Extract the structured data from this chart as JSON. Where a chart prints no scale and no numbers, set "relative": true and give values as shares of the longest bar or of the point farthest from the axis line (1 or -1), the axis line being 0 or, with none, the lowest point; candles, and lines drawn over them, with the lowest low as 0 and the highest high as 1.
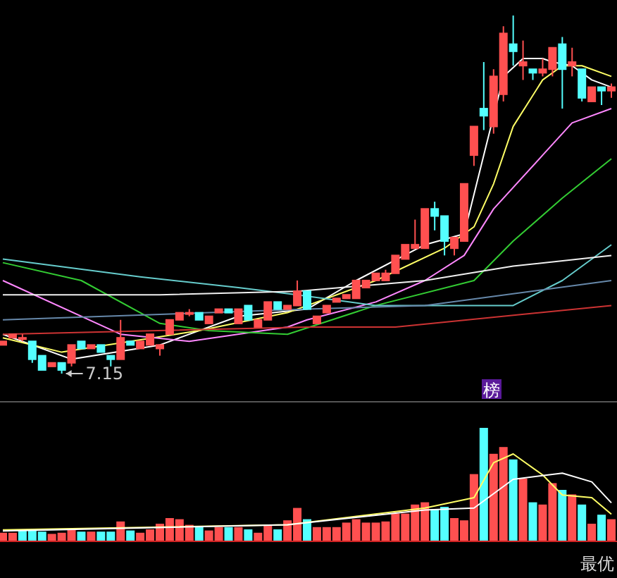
{
  "chart_data": [
    {
      "type": "candlestick",
      "relative": true,
      "categories": [
        null,
        null,
        null,
        null,
        null,
        null,
        null,
        null,
        null,
        null,
        null,
        null,
        null,
        null,
        null,
        null,
        null,
        null,
        null,
        null,
        null,
        null,
        null,
        null,
        null,
        null,
        null,
        null,
        null,
        null,
        null,
        null,
        null,
        null,
        null,
        null,
        null,
        null,
        null,
        null,
        null,
        null,
        null,
        null,
        null,
        null,
        null,
        null,
        null,
        null,
        null,
        null,
        null,
        null,
        null,
        null,
        null,
        null,
        null,
        null,
        null,
        null,
        null
      ],
      "ohlc": [
        [
          0.08,
          0.09,
          0.08,
          0.09
        ],
        [
          0.1,
          0.11,
          0.1,
          0.11
        ],
        [
          0.1,
          0.11,
          0.09,
          0.1
        ],
        [
          0.09,
          0.09,
          0.03,
          0.04
        ],
        [
          0.05,
          0.05,
          0.01,
          0.01
        ],
        [
          0.02,
          0.03,
          0.02,
          0.03
        ],
        [
          0.03,
          0.03,
          0,
          0.01
        ],
        [
          0.03,
          0.08,
          0.02,
          0.08
        ],
        [
          0.09,
          0.09,
          0.07,
          0.07
        ],
        [
          0.07,
          0.08,
          0.07,
          0.08
        ],
        [
          0.08,
          0.08,
          0.06,
          0.06
        ],
        [
          0.05,
          0.05,
          0.02,
          0.04
        ],
        [
          0.04,
          0.15,
          0.04,
          0.1
        ],
        [
          0.09,
          0.09,
          0.08,
          0.08
        ],
        [
          0.07,
          0.09,
          0.07,
          0.09
        ],
        [
          0.08,
          0.11,
          0.08,
          0.11
        ],
        [
          0.07,
          0.08,
          0.05,
          0.08
        ],
        [
          0.11,
          0.15,
          0.11,
          0.15
        ],
        [
          0.15,
          0.17,
          0.15,
          0.17
        ],
        [
          0.17,
          0.18,
          0.16,
          0.17
        ],
        [
          0.17,
          0.17,
          0.15,
          0.15
        ],
        [
          0.14,
          0.16,
          0.14,
          0.16
        ],
        [
          0.17,
          0.18,
          0.17,
          0.18
        ],
        [
          0.18,
          0.18,
          0.17,
          0.17
        ],
        [
          0.14,
          0.18,
          0.14,
          0.18
        ],
        [
          0.19,
          0.19,
          0.15,
          0.15
        ],
        [
          0.13,
          0.15,
          0.13,
          0.15
        ],
        [
          0.15,
          0.2,
          0.15,
          0.2
        ],
        [
          0.2,
          0.2,
          0.18,
          0.18
        ],
        [
          0.18,
          0.19,
          0.18,
          0.19
        ],
        [
          0.19,
          0.26,
          0.19,
          0.23
        ],
        [
          0.23,
          0.23,
          0.18,
          0.18
        ],
        [
          0.14,
          0.16,
          0.14,
          0.16
        ],
        [
          0.17,
          0.19,
          0.17,
          0.19
        ],
        [
          0.2,
          0.21,
          0.2,
          0.21
        ],
        [
          0.21,
          0.22,
          0.21,
          0.22
        ],
        [
          0.21,
          0.26,
          0.21,
          0.26
        ],
        [
          0.24,
          0.26,
          0.24,
          0.26
        ],
        [
          0.26,
          0.28,
          0.26,
          0.28
        ],
        [
          0.26,
          0.29,
          0.26,
          0.28
        ],
        [
          0.28,
          0.33,
          0.28,
          0.33
        ],
        [
          0.32,
          0.36,
          0.32,
          0.36
        ],
        [
          0.35,
          0.43,
          0.35,
          0.36
        ],
        [
          0.35,
          0.46,
          0.35,
          0.46
        ],
        [
          0.46,
          0.48,
          0.4,
          0.44
        ],
        [
          0.44,
          0.44,
          0.33,
          0.37
        ],
        [
          0.35,
          0.38,
          0.33,
          0.38
        ],
        [
          0.37,
          0.53,
          0.37,
          0.53
        ],
        [
          0.61,
          0.69,
          0.58,
          0.69
        ],
        [
          0.74,
          0.87,
          0.68,
          0.72
        ],
        [
          0.69,
          0.85,
          0.67,
          0.83
        ],
        [
          0.78,
          0.97,
          0.76,
          0.95
        ],
        [
          0.92,
          1,
          0.86,
          0.9
        ],
        [
          0.86,
          0.93,
          0.82,
          0.87
        ],
        [
          0.85,
          0.85,
          0.82,
          0.84
        ],
        [
          0.84,
          0.88,
          0.83,
          0.85
        ],
        [
          0.85,
          0.91,
          0.83,
          0.91
        ],
        [
          0.92,
          0.94,
          0.74,
          0.85
        ],
        [
          0.86,
          0.91,
          0.83,
          0.87
        ],
        [
          0.85,
          0.85,
          0.76,
          0.77
        ],
        [
          0.76,
          0.8,
          0.76,
          0.8
        ],
        [
          0.8,
          0.8,
          0.75,
          0.79
        ],
        [
          0.79,
          0.81,
          0.77,
          0.8
        ]
      ],
      "series": [
        {
          "type": "line",
          "color": "#ffffff",
          "values": [
            0.11,
            null,
            null,
            null,
            null,
            null,
            null,
            0.04,
            null,
            null,
            null,
            null,
            null,
            null,
            null,
            null,
            0.08,
            null,
            null,
            null,
            null,
            null,
            null,
            null,
            0.16,
            null,
            null,
            null,
            null,
            null,
            null,
            0.18,
            null,
            null,
            null,
            null,
            0.26,
            null,
            null,
            null,
            null,
            null,
            null,
            0.36,
            null,
            null,
            null,
            0.39,
            null,
            0.61,
            null,
            0.83,
            null,
            0.88,
            null,
            0.88,
            0.87,
            null,
            0.86,
            null,
            0.82,
            null,
            0.8
          ]
        },
        {
          "type": "line",
          "color": "#ffff66",
          "values": [
            0.1,
            null,
            null,
            null,
            null,
            null,
            0.06,
            null,
            null,
            null,
            null,
            null,
            null,
            null,
            null,
            null,
            null,
            null,
            null,
            null,
            0.12,
            null,
            null,
            null,
            null,
            null,
            null,
            null,
            null,
            0.17,
            null,
            null,
            null,
            null,
            null,
            null,
            null,
            null,
            0.26,
            null,
            null,
            null,
            null,
            null,
            null,
            0.35,
            null,
            null,
            0.41,
            null,
            0.53,
            null,
            0.69,
            null,
            null,
            0.82,
            null,
            0.86,
            null,
            0.86,
            null,
            null,
            0.83
          ]
        },
        {
          "type": "line",
          "color": "#ff88ff",
          "values": [
            0.26,
            null,
            null,
            null,
            null,
            null,
            null,
            null,
            null,
            null,
            null,
            null,
            0.11,
            null,
            null,
            null,
            null,
            null,
            null,
            0.09,
            null,
            null,
            null,
            null,
            null,
            null,
            null,
            null,
            null,
            0.13,
            null,
            0.15,
            null,
            null,
            null,
            null,
            null,
            null,
            0.2,
            null,
            null,
            null,
            null,
            0.26,
            null,
            null,
            null,
            0.33,
            null,
            null,
            0.46,
            null,
            null,
            null,
            null,
            0.61,
            null,
            null,
            0.7,
            null,
            null,
            null,
            0.74
          ]
        },
        {
          "type": "line",
          "color": "#33cc33",
          "values": [
            0.31,
            null,
            null,
            null,
            null,
            null,
            null,
            null,
            0.26,
            null,
            null,
            null,
            null,
            null,
            null,
            null,
            0.14,
            null,
            null,
            null,
            null,
            0.12,
            null,
            null,
            null,
            null,
            null,
            null,
            null,
            0.11,
            null,
            null,
            null,
            null,
            null,
            null,
            null,
            null,
            0.19,
            null,
            null,
            null,
            null,
            null,
            null,
            null,
            null,
            null,
            0.26,
            null,
            null,
            null,
            0.37,
            null,
            null,
            null,
            null,
            0.49,
            null,
            null,
            null,
            null,
            0.6
          ]
        },
        {
          "type": "line",
          "color": "#66cccc",
          "values": [
            0.32,
            null,
            null,
            null,
            null,
            null,
            null,
            null,
            null,
            null,
            null,
            null,
            null,
            null,
            0.27,
            null,
            null,
            null,
            null,
            null,
            null,
            null,
            null,
            null,
            0.24,
            null,
            null,
            null,
            null,
            null,
            0.22,
            null,
            null,
            null,
            null,
            null,
            null,
            null,
            0.19,
            null,
            null,
            null,
            null,
            null,
            null,
            null,
            null,
            null,
            null,
            null,
            null,
            null,
            0.19,
            null,
            null,
            null,
            null,
            0.26,
            null,
            null,
            null,
            null,
            0.36
          ]
        },
        {
          "type": "line",
          "color": "#f0f0f0",
          "values": [
            0.22,
            null,
            null,
            null,
            null,
            null,
            null,
            null,
            null,
            null,
            null,
            null,
            null,
            null,
            null,
            null,
            0.22,
            null,
            null,
            null,
            null,
            null,
            null,
            null,
            null,
            null,
            null,
            null,
            null,
            null,
            0.23,
            null,
            null,
            null,
            null,
            null,
            null,
            null,
            null,
            null,
            null,
            null,
            null,
            0.26,
            null,
            null,
            null,
            null,
            null,
            null,
            null,
            null,
            0.3,
            null,
            null,
            null,
            null,
            null,
            null,
            null,
            null,
            null,
            0.33
          ]
        },
        {
          "type": "line",
          "color": "#6688aa",
          "values": [
            0.15,
            null,
            null,
            null,
            null,
            null,
            null,
            null,
            null,
            null,
            null,
            null,
            null,
            null,
            null,
            null,
            null,
            null,
            null,
            null,
            null,
            null,
            null,
            null,
            null,
            null,
            null,
            null,
            null,
            null,
            null,
            0.18,
            null,
            null,
            null,
            null,
            null,
            null,
            null,
            null,
            null,
            null,
            null,
            0.19,
            null,
            null,
            null,
            null,
            null,
            null,
            null,
            null,
            null,
            null,
            null,
            null,
            null,
            null,
            null,
            null,
            null,
            null,
            0.26
          ]
        },
        {
          "type": "line",
          "color": "#cc3333",
          "values": [
            0.11,
            null,
            null,
            null,
            null,
            null,
            null,
            null,
            null,
            null,
            null,
            null,
            null,
            null,
            null,
            null,
            null,
            null,
            null,
            null,
            null,
            null,
            null,
            null,
            null,
            null,
            null,
            null,
            null,
            null,
            null,
            0.13,
            null,
            null,
            null,
            null,
            null,
            null,
            null,
            null,
            0.13,
            null,
            null,
            null,
            null,
            null,
            null,
            null,
            null,
            null,
            null,
            null,
            null,
            null,
            null,
            null,
            null,
            null,
            null,
            null,
            null,
            null,
            0.19
          ]
        }
      ],
      "annotations": [
        "7.15",
        "榜"
      ]
    },
    {
      "type": "bar",
      "relative": true,
      "categories": [
        null,
        null,
        null,
        null,
        null,
        null,
        null,
        null,
        null,
        null,
        null,
        null,
        null,
        null,
        null,
        null,
        null,
        null,
        null,
        null,
        null,
        null,
        null,
        null,
        null,
        null,
        null,
        null,
        null,
        null,
        null,
        null,
        null,
        null,
        null,
        null,
        null,
        null,
        null,
        null,
        null,
        null,
        null,
        null,
        null,
        null,
        null,
        null,
        null,
        null,
        null,
        null,
        null,
        null,
        null,
        null,
        null,
        null,
        null,
        null,
        null,
        null,
        null
      ],
      "values": [
        0.07,
        0.07,
        0.09,
        0.1,
        0.08,
        0.06,
        0.07,
        0.1,
        0.08,
        0.08,
        0.08,
        0.08,
        0.17,
        0.09,
        0.07,
        0.1,
        0.15,
        0.2,
        0.19,
        0.14,
        0.12,
        0.09,
        0.12,
        0.12,
        0.12,
        0.1,
        0.07,
        0.14,
        0.1,
        0.18,
        0.29,
        0.19,
        0.12,
        0.12,
        0.12,
        0.16,
        0.19,
        0.16,
        0.16,
        0.17,
        0.24,
        0.24,
        0.32,
        0.34,
        0.28,
        0.3,
        0.2,
        0.18,
        0.59,
        1,
        0.77,
        0.83,
        0.72,
        0.55,
        0.34,
        0.32,
        0.51,
        0.45,
        0.41,
        0.32,
        0.15,
        0.23,
        0.19
      ],
      "colors": [
        "#ff5050",
        "#ff5050",
        "#54ffff",
        "#54ffff",
        "#54ffff",
        "#ff5050",
        "#ff5050",
        "#ff5050",
        "#54ffff",
        "#ff5050",
        "#54ffff",
        "#54ffff",
        "#ff5050",
        "#54ffff",
        "#ff5050",
        "#ff5050",
        "#ff5050",
        "#ff5050",
        "#ff5050",
        "#ff5050",
        "#54ffff",
        "#ff5050",
        "#ff5050",
        "#54ffff",
        "#ff5050",
        "#54ffff",
        "#ff5050",
        "#ff5050",
        "#54ffff",
        "#ff5050",
        "#ff5050",
        "#54ffff",
        "#ff5050",
        "#ff5050",
        "#ff5050",
        "#ff5050",
        "#ff5050",
        "#ff5050",
        "#ff5050",
        "#ff5050",
        "#ff5050",
        "#ff5050",
        "#ff5050",
        "#ff5050",
        "#54ffff",
        "#54ffff",
        "#ff5050",
        "#ff5050",
        "#ff5050",
        "#54ffff",
        "#ff5050",
        "#ff5050",
        "#54ffff",
        "#ff5050",
        "#54ffff",
        "#ff5050",
        "#ff5050",
        "#54ffff",
        "#ff5050",
        "#54ffff",
        "#ff5050",
        "#54ffff",
        "#ff5050"
      ],
      "annotations": [
        "最优"
      ]
    },
    {
      "type": "line",
      "relative": true,
      "categories": [
        null,
        null,
        null,
        null,
        null,
        null,
        null,
        null,
        null,
        null,
        null,
        null,
        null,
        null,
        null,
        null,
        null,
        null,
        null,
        null,
        null,
        null,
        null,
        null,
        null,
        null,
        null,
        null,
        null,
        null,
        null,
        null,
        null,
        null,
        null,
        null,
        null,
        null,
        null,
        null,
        null,
        null,
        null,
        null,
        null,
        null,
        null,
        null,
        null,
        null,
        null,
        null,
        null,
        null,
        null,
        null,
        null,
        null,
        null,
        null,
        null,
        null,
        null
      ],
      "series": [
        {
          "color": "#ffff66",
          "values": [
            0.13,
            null,
            null,
            null,
            null,
            null,
            null,
            null,
            null,
            null,
            null,
            null,
            null,
            null,
            null,
            null,
            null,
            null,
            null,
            null,
            null,
            null,
            null,
            null,
            null,
            null,
            null,
            null,
            null,
            0.19,
            null,
            null,
            null,
            null,
            null,
            null,
            null,
            null,
            null,
            null,
            null,
            null,
            null,
            0.38,
            null,
            null,
            null,
            null,
            0.5,
            null,
            0.9,
            null,
            1,
            null,
            null,
            0.76,
            null,
            0.53,
            null,
            null,
            0.5,
            null,
            0.31
          ]
        },
        {
          "color": "#ffffff",
          "values": [
            0.12,
            null,
            null,
            null,
            null,
            null,
            null,
            null,
            null,
            null,
            null,
            null,
            null,
            null,
            null,
            null,
            null,
            null,
            null,
            null,
            null,
            null,
            null,
            null,
            null,
            null,
            null,
            null,
            null,
            0.19,
            null,
            null,
            null,
            null,
            null,
            null,
            null,
            null,
            null,
            null,
            null,
            null,
            null,
            0.36,
            null,
            null,
            null,
            null,
            0.38,
            null,
            null,
            null,
            0.71,
            null,
            null,
            null,
            null,
            0.78,
            null,
            null,
            0.68,
            null,
            0.44
          ]
        }
      ]
    }
  ]
}
